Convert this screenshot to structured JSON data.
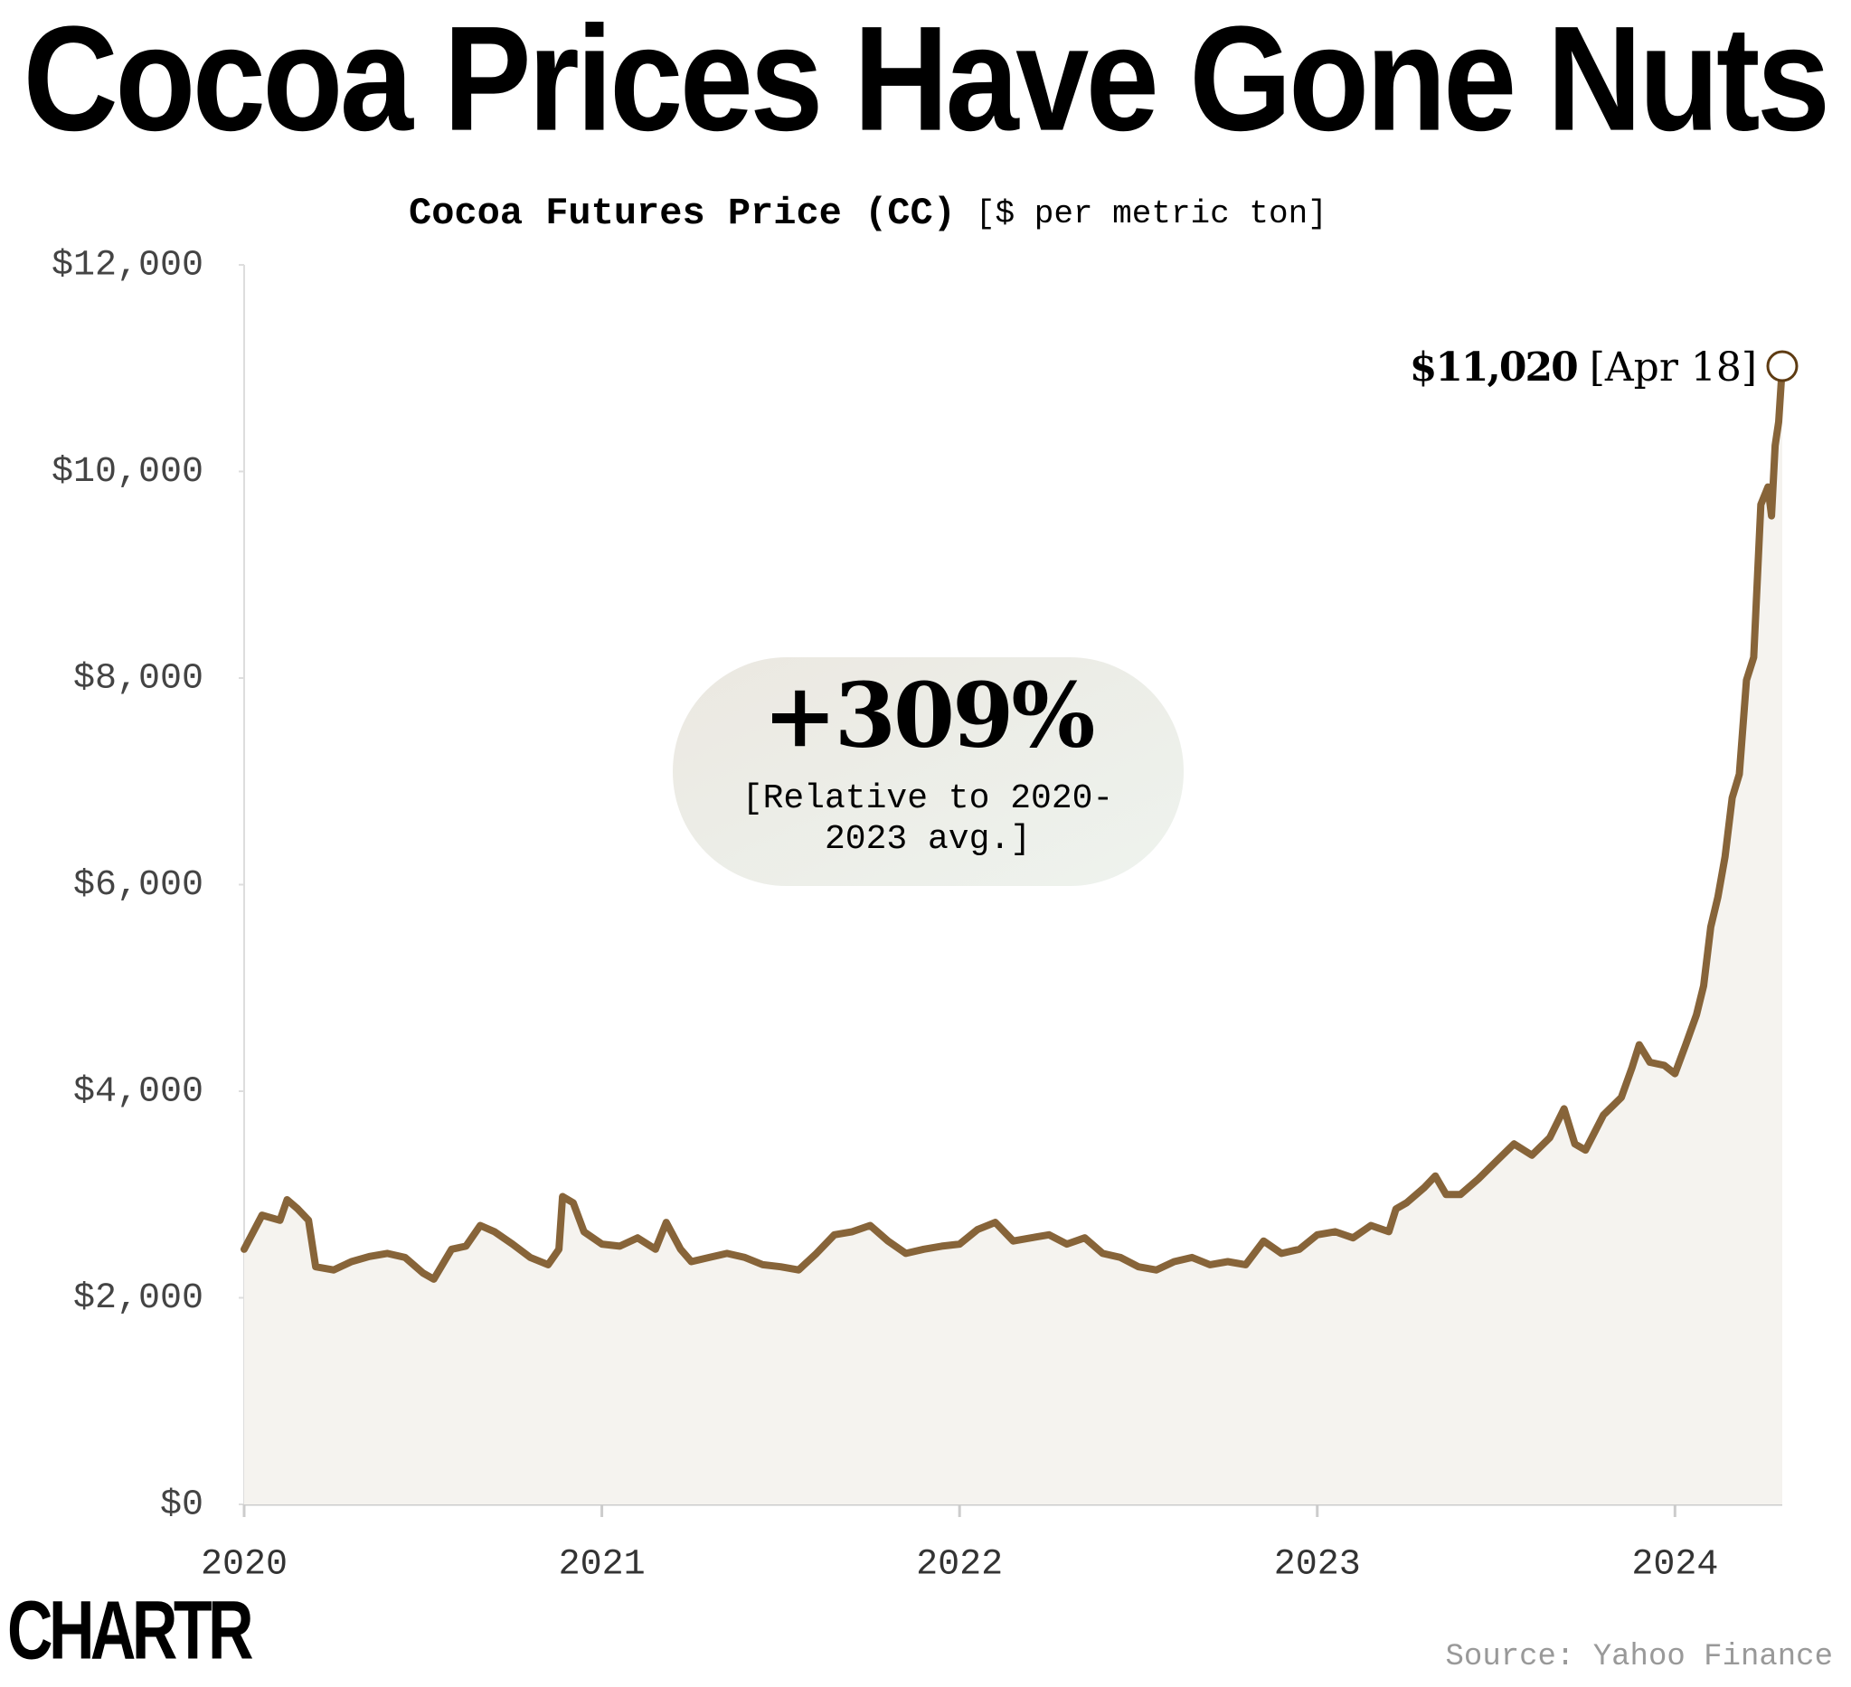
{
  "chart_data": {
    "type": "line",
    "title": "Cocoa Prices Have Gone Nuts",
    "subtitle": "Cocoa Futures Price (CC)",
    "units": "[$ per metric ton]",
    "x": [
      2020.0,
      2020.05,
      2020.1,
      2020.12,
      2020.15,
      2020.18,
      2020.2,
      2020.25,
      2020.3,
      2020.35,
      2020.4,
      2020.45,
      2020.5,
      2020.53,
      2020.58,
      2020.62,
      2020.66,
      2020.7,
      2020.75,
      2020.8,
      2020.85,
      2020.88,
      2020.89,
      2020.92,
      2020.95,
      2021.0,
      2021.05,
      2021.1,
      2021.15,
      2021.18,
      2021.22,
      2021.25,
      2021.3,
      2021.35,
      2021.4,
      2021.45,
      2021.5,
      2021.55,
      2021.6,
      2021.65,
      2021.7,
      2021.75,
      2021.8,
      2021.85,
      2021.9,
      2021.95,
      2022.0,
      2022.05,
      2022.1,
      2022.15,
      2022.2,
      2022.25,
      2022.3,
      2022.35,
      2022.4,
      2022.45,
      2022.5,
      2022.55,
      2022.6,
      2022.65,
      2022.7,
      2022.75,
      2022.8,
      2022.85,
      2022.9,
      2022.95,
      2023.0,
      2023.05,
      2023.1,
      2023.15,
      2023.2,
      2023.22,
      2023.25,
      2023.3,
      2023.33,
      2023.36,
      2023.4,
      2023.45,
      2023.5,
      2023.55,
      2023.6,
      2023.65,
      2023.69,
      2023.72,
      2023.75,
      2023.8,
      2023.85,
      2023.88,
      2023.9,
      2023.93,
      2023.97,
      2024.0,
      2024.03,
      2024.06,
      2024.08,
      2024.1,
      2024.12,
      2024.14,
      2024.16,
      2024.18,
      2024.2,
      2024.22,
      2024.24,
      2024.26,
      2024.27,
      2024.28,
      2024.29,
      2024.3
    ],
    "values": [
      2470,
      2800,
      2750,
      2950,
      2860,
      2750,
      2300,
      2270,
      2350,
      2400,
      2430,
      2390,
      2240,
      2180,
      2470,
      2500,
      2700,
      2640,
      2520,
      2390,
      2320,
      2470,
      2980,
      2920,
      2640,
      2520,
      2500,
      2580,
      2470,
      2730,
      2470,
      2350,
      2390,
      2430,
      2390,
      2320,
      2300,
      2270,
      2430,
      2610,
      2640,
      2700,
      2550,
      2430,
      2470,
      2500,
      2520,
      2660,
      2730,
      2550,
      2580,
      2610,
      2520,
      2580,
      2430,
      2390,
      2300,
      2270,
      2350,
      2390,
      2320,
      2350,
      2320,
      2550,
      2430,
      2470,
      2610,
      2640,
      2580,
      2700,
      2640,
      2860,
      2920,
      3070,
      3180,
      3000,
      3000,
      3150,
      3320,
      3490,
      3380,
      3550,
      3830,
      3490,
      3430,
      3770,
      3940,
      4230,
      4450,
      4280,
      4250,
      4170,
      4450,
      4740,
      5020,
      5590,
      5880,
      6270,
      6840,
      7070,
      7980,
      8200,
      9680,
      9850,
      9570,
      10250,
      10480,
      11020
    ],
    "value_labels": [
      null,
      null,
      null,
      null,
      null,
      null,
      null,
      null,
      null,
      null,
      null,
      null,
      null,
      null,
      null,
      null,
      null,
      null,
      null,
      null,
      null,
      null,
      null,
      null,
      null,
      null,
      null,
      null,
      null,
      null,
      null,
      null,
      null,
      null,
      null,
      null,
      null,
      null,
      null,
      null,
      null,
      null,
      null,
      null,
      null,
      null,
      null,
      null,
      null,
      null,
      null,
      null,
      null,
      null,
      null,
      null,
      null,
      null,
      null,
      null,
      null,
      null,
      null,
      null,
      null,
      null,
      null,
      null,
      null,
      null,
      null,
      null,
      null,
      null,
      null,
      null,
      null,
      null,
      null,
      null,
      null,
      null,
      null,
      null,
      null,
      null,
      null,
      null,
      null,
      null,
      null,
      null,
      null,
      null,
      null,
      null,
      null,
      null,
      null,
      null,
      null,
      null,
      null,
      null,
      null,
      null,
      null,
      "$11,020"
    ],
    "end_date_label": "[Apr 18]",
    "color": "#876439",
    "xlim": [
      2020,
      2024.3
    ],
    "xticks": [
      2020,
      2021,
      2022,
      2023,
      2024
    ],
    "ylim": [
      0,
      12000
    ],
    "yticks": [
      {
        "value": 0,
        "label": "$0"
      },
      {
        "value": 2000,
        "label": "$2,000"
      },
      {
        "value": 4000,
        "label": "$4,000"
      },
      {
        "value": 6000,
        "label": "$6,000"
      },
      {
        "value": 8000,
        "label": "$8,000"
      },
      {
        "value": 10000,
        "label": "$10,000"
      },
      {
        "value": 12000,
        "label": "$12,000"
      }
    ],
    "grid": false,
    "annotation": {
      "headline": "+309%",
      "lines": [
        "[Relative to 2020-",
        "2023 avg.]"
      ]
    },
    "source": "Source: Yahoo Finance",
    "logo": "CHARTR"
  }
}
